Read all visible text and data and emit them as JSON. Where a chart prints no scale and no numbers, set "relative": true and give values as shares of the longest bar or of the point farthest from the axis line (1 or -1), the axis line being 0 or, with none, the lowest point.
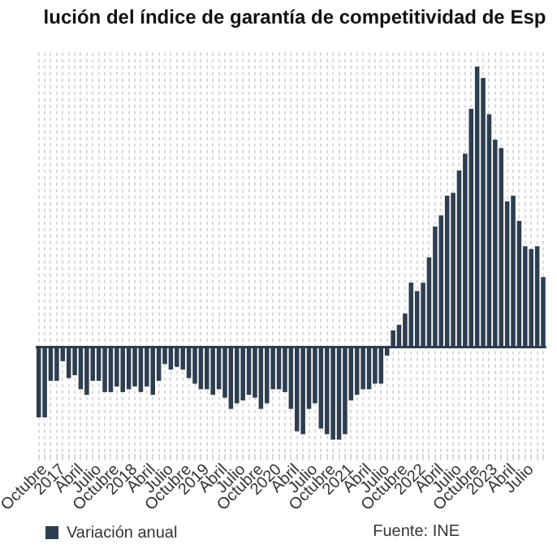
{
  "chart_data": {
    "type": "bar",
    "title": "lución del índice de garantía de competitividad de Esp",
    "relative": true,
    "grid": "x",
    "legend": "bottom",
    "annotations": [
      "Fuente: INE"
    ],
    "categories": [
      null,
      "Octubre",
      null,
      null,
      "2017",
      null,
      null,
      "Abril",
      null,
      null,
      "Julio",
      null,
      null,
      "Octubre",
      null,
      null,
      "2018",
      null,
      null,
      "Abril",
      null,
      null,
      "Julio",
      null,
      null,
      "Octubre",
      null,
      null,
      "2019",
      null,
      null,
      "Abril",
      null,
      null,
      "Julio",
      null,
      null,
      "Octubre",
      null,
      null,
      "2020",
      null,
      null,
      "Abril",
      null,
      null,
      "Julio",
      null,
      null,
      "Octubre",
      null,
      null,
      "2021",
      null,
      null,
      "Abril",
      null,
      null,
      "Julio",
      null,
      null,
      "Octubre",
      null,
      null,
      "2022",
      null,
      null,
      "Abril",
      null,
      null,
      "Julio",
      null,
      null,
      "Octubre",
      null,
      null,
      "2023",
      null,
      null,
      "Abril",
      null,
      null,
      "Julio",
      null,
      null
    ],
    "series": [
      {
        "name": "Variación anual",
        "color": "#2d3e50",
        "values": [
          -0.25,
          -0.25,
          -0.12,
          -0.12,
          -0.05,
          -0.11,
          -0.1,
          -0.15,
          -0.17,
          -0.12,
          -0.12,
          -0.16,
          -0.16,
          -0.14,
          -0.16,
          -0.15,
          -0.14,
          -0.16,
          -0.14,
          -0.17,
          -0.12,
          -0.06,
          -0.08,
          -0.07,
          -0.08,
          -0.11,
          -0.13,
          -0.15,
          -0.15,
          -0.17,
          -0.15,
          -0.18,
          -0.22,
          -0.2,
          -0.19,
          -0.17,
          -0.18,
          -0.22,
          -0.2,
          -0.15,
          -0.15,
          -0.16,
          -0.22,
          -0.3,
          -0.31,
          -0.22,
          -0.2,
          -0.29,
          -0.31,
          -0.33,
          -0.33,
          -0.31,
          -0.19,
          -0.17,
          -0.15,
          -0.15,
          -0.13,
          -0.13,
          -0.03,
          0.06,
          0.08,
          0.12,
          0.23,
          0.2,
          0.23,
          0.32,
          0.43,
          0.47,
          0.54,
          0.55,
          0.63,
          0.69,
          0.85,
          1,
          0.96,
          0.83,
          0.74,
          0.71,
          0.52,
          0.54,
          0.45,
          0.36,
          0.35,
          0.36,
          0.25
        ]
      }
    ]
  }
}
